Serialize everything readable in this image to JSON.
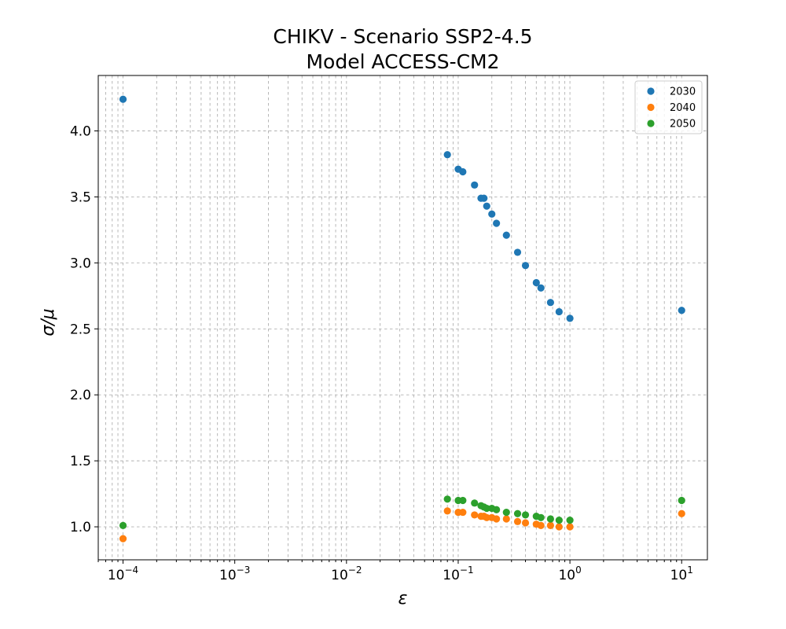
{
  "chart_data": {
    "type": "scatter",
    "title": [
      "CHIKV - Scenario SSP2-4.5",
      "Model ACCESS-CM2"
    ],
    "xlabel": "ε",
    "ylabel": "σ/μ",
    "xscale": "log",
    "xlim": [
      6e-05,
      17
    ],
    "ylim": [
      0.75,
      4.42
    ],
    "x_ticks": [
      {
        "value": 0.0001,
        "base": "10",
        "exp": "−4"
      },
      {
        "value": 0.001,
        "base": "10",
        "exp": "−3"
      },
      {
        "value": 0.01,
        "base": "10",
        "exp": "−2"
      },
      {
        "value": 0.1,
        "base": "10",
        "exp": "−1"
      },
      {
        "value": 1,
        "base": "10",
        "exp": "0"
      },
      {
        "value": 10,
        "base": "10",
        "exp": "1"
      }
    ],
    "y_ticks": [
      "1.0",
      "1.5",
      "2.0",
      "2.5",
      "3.0",
      "3.5",
      "4.0"
    ],
    "grid": true,
    "legend_position": "top-right",
    "series": [
      {
        "name": "2030",
        "color": "#1f77b4",
        "points": [
          [
            0.0001,
            4.24
          ],
          [
            0.08,
            3.82
          ],
          [
            0.1,
            3.71
          ],
          [
            0.11,
            3.69
          ],
          [
            0.14,
            3.59
          ],
          [
            0.16,
            3.49
          ],
          [
            0.17,
            3.49
          ],
          [
            0.18,
            3.43
          ],
          [
            0.2,
            3.37
          ],
          [
            0.22,
            3.3
          ],
          [
            0.27,
            3.21
          ],
          [
            0.34,
            3.08
          ],
          [
            0.4,
            2.98
          ],
          [
            0.5,
            2.85
          ],
          [
            0.55,
            2.81
          ],
          [
            0.67,
            2.7
          ],
          [
            0.8,
            2.63
          ],
          [
            1.0,
            2.58
          ],
          [
            10.0,
            2.64
          ]
        ]
      },
      {
        "name": "2040",
        "color": "#ff7f0e",
        "points": [
          [
            0.0001,
            0.91
          ],
          [
            0.08,
            1.12
          ],
          [
            0.1,
            1.11
          ],
          [
            0.11,
            1.11
          ],
          [
            0.14,
            1.09
          ],
          [
            0.16,
            1.08
          ],
          [
            0.17,
            1.08
          ],
          [
            0.18,
            1.07
          ],
          [
            0.2,
            1.07
          ],
          [
            0.22,
            1.06
          ],
          [
            0.27,
            1.06
          ],
          [
            0.34,
            1.04
          ],
          [
            0.4,
            1.03
          ],
          [
            0.5,
            1.02
          ],
          [
            0.55,
            1.01
          ],
          [
            0.67,
            1.01
          ],
          [
            0.8,
            1.0
          ],
          [
            1.0,
            1.0
          ],
          [
            10.0,
            1.1
          ]
        ]
      },
      {
        "name": "2050",
        "color": "#2ca02c",
        "points": [
          [
            0.0001,
            1.01
          ],
          [
            0.08,
            1.21
          ],
          [
            0.1,
            1.2
          ],
          [
            0.11,
            1.2
          ],
          [
            0.14,
            1.18
          ],
          [
            0.16,
            1.16
          ],
          [
            0.17,
            1.15
          ],
          [
            0.18,
            1.14
          ],
          [
            0.2,
            1.14
          ],
          [
            0.22,
            1.13
          ],
          [
            0.27,
            1.11
          ],
          [
            0.34,
            1.1
          ],
          [
            0.4,
            1.09
          ],
          [
            0.5,
            1.08
          ],
          [
            0.55,
            1.07
          ],
          [
            0.67,
            1.06
          ],
          [
            0.8,
            1.05
          ],
          [
            1.0,
            1.05
          ],
          [
            10.0,
            1.2
          ]
        ]
      }
    ]
  }
}
